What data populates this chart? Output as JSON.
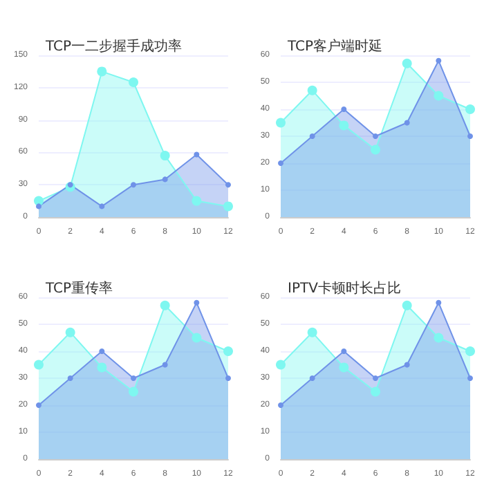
{
  "chart_data": [
    {
      "type": "area",
      "title": "TCP一二步握手成功率",
      "x": [
        0,
        2,
        4,
        6,
        8,
        10,
        12
      ],
      "xlim": [
        0,
        12
      ],
      "xticks": [
        0,
        2,
        4,
        6,
        8,
        10,
        12
      ],
      "ylim": [
        0,
        150
      ],
      "yticks": [
        0,
        30,
        60,
        90,
        120,
        150
      ],
      "grid": "y",
      "marker": "circle",
      "series": [
        {
          "color": "#7ef7f0",
          "values": [
            15,
            28,
            135,
            125,
            57,
            15,
            10
          ]
        },
        {
          "color": "#6f92e8",
          "values": [
            10,
            30,
            10,
            30,
            35,
            58,
            30
          ]
        }
      ]
    },
    {
      "type": "area",
      "title": "TCP客户端时延",
      "x": [
        0,
        2,
        4,
        6,
        8,
        10,
        12
      ],
      "xlim": [
        0,
        12
      ],
      "xticks": [
        0,
        2,
        4,
        6,
        8,
        10,
        12
      ],
      "ylim": [
        0,
        60
      ],
      "yticks": [
        0,
        10,
        20,
        30,
        40,
        50,
        60
      ],
      "grid": "y",
      "marker": "circle",
      "series": [
        {
          "color": "#7ef7f0",
          "values": [
            35,
            47,
            34,
            25,
            57,
            45,
            40
          ]
        },
        {
          "color": "#6f92e8",
          "values": [
            20,
            30,
            40,
            30,
            35,
            58,
            30
          ]
        }
      ]
    },
    {
      "type": "area",
      "title": "TCP重传率",
      "x": [
        0,
        2,
        4,
        6,
        8,
        10,
        12
      ],
      "xlim": [
        0,
        12
      ],
      "xticks": [
        0,
        2,
        4,
        6,
        8,
        10,
        12
      ],
      "ylim": [
        0,
        60
      ],
      "yticks": [
        0,
        10,
        20,
        30,
        40,
        50,
        60
      ],
      "grid": "y",
      "marker": "circle",
      "series": [
        {
          "color": "#7ef7f0",
          "values": [
            35,
            47,
            34,
            25,
            57,
            45,
            40
          ]
        },
        {
          "color": "#6f92e8",
          "values": [
            20,
            30,
            40,
            30,
            35,
            58,
            30
          ]
        }
      ]
    },
    {
      "type": "area",
      "title": "IPTV卡顿时长占比",
      "x": [
        0,
        2,
        4,
        6,
        8,
        10,
        12
      ],
      "xlim": [
        0,
        12
      ],
      "xticks": [
        0,
        2,
        4,
        6,
        8,
        10,
        12
      ],
      "ylim": [
        0,
        60
      ],
      "yticks": [
        0,
        10,
        20,
        30,
        40,
        50,
        60
      ],
      "grid": "y",
      "marker": "circle",
      "series": [
        {
          "color": "#7ef7f0",
          "values": [
            35,
            47,
            34,
            25,
            57,
            45,
            40
          ]
        },
        {
          "color": "#6f92e8",
          "values": [
            20,
            30,
            40,
            30,
            35,
            58,
            30
          ]
        }
      ]
    }
  ]
}
